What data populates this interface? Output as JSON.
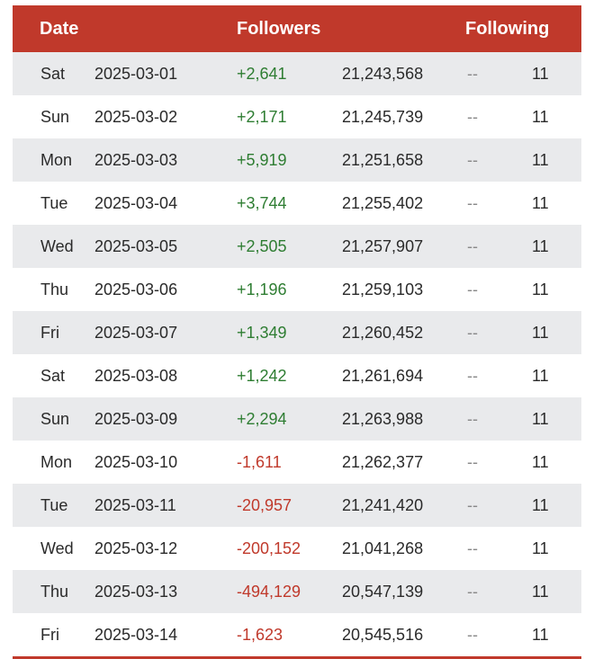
{
  "header": {
    "date": "Date",
    "followers": "Followers",
    "following": "Following"
  },
  "rows": [
    {
      "day": "Sat",
      "date": "2025-03-01",
      "change": "+2,641",
      "total": "21,243,568",
      "following_change": "--",
      "following": "11"
    },
    {
      "day": "Sun",
      "date": "2025-03-02",
      "change": "+2,171",
      "total": "21,245,739",
      "following_change": "--",
      "following": "11"
    },
    {
      "day": "Mon",
      "date": "2025-03-03",
      "change": "+5,919",
      "total": "21,251,658",
      "following_change": "--",
      "following": "11"
    },
    {
      "day": "Tue",
      "date": "2025-03-04",
      "change": "+3,744",
      "total": "21,255,402",
      "following_change": "--",
      "following": "11"
    },
    {
      "day": "Wed",
      "date": "2025-03-05",
      "change": "+2,505",
      "total": "21,257,907",
      "following_change": "--",
      "following": "11"
    },
    {
      "day": "Thu",
      "date": "2025-03-06",
      "change": "+1,196",
      "total": "21,259,103",
      "following_change": "--",
      "following": "11"
    },
    {
      "day": "Fri",
      "date": "2025-03-07",
      "change": "+1,349",
      "total": "21,260,452",
      "following_change": "--",
      "following": "11"
    },
    {
      "day": "Sat",
      "date": "2025-03-08",
      "change": "+1,242",
      "total": "21,261,694",
      "following_change": "--",
      "following": "11"
    },
    {
      "day": "Sun",
      "date": "2025-03-09",
      "change": "+2,294",
      "total": "21,263,988",
      "following_change": "--",
      "following": "11"
    },
    {
      "day": "Mon",
      "date": "2025-03-10",
      "change": "-1,611",
      "total": "21,262,377",
      "following_change": "--",
      "following": "11"
    },
    {
      "day": "Tue",
      "date": "2025-03-11",
      "change": "-20,957",
      "total": "21,241,420",
      "following_change": "--",
      "following": "11"
    },
    {
      "day": "Wed",
      "date": "2025-03-12",
      "change": "-200,152",
      "total": "21,041,268",
      "following_change": "--",
      "following": "11"
    },
    {
      "day": "Thu",
      "date": "2025-03-13",
      "change": "-494,129",
      "total": "20,547,139",
      "following_change": "--",
      "following": "11"
    },
    {
      "day": "Fri",
      "date": "2025-03-14",
      "change": "-1,623",
      "total": "20,545,516",
      "following_change": "--",
      "following": "11"
    }
  ],
  "colors": {
    "header_bg": "#c0392b",
    "positive": "#2e7d32",
    "negative": "#c0392b",
    "row_alt": "#e9eaec"
  }
}
